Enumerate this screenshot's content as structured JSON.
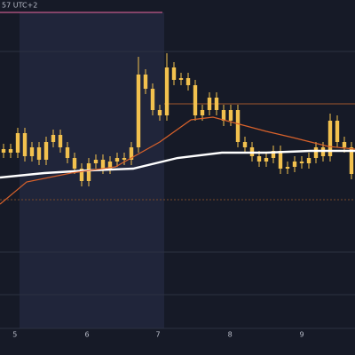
{
  "chart_data": {
    "type": "candlestick",
    "header": "57 UTC+2",
    "color": "#f2c14e",
    "open": [
      57,
      58,
      57,
      62.5,
      56,
      58.5,
      55,
      60,
      62,
      58.5,
      55.5,
      52.5,
      49,
      54,
      55,
      52.5,
      54.5,
      55.5,
      55,
      58.5,
      79,
      75,
      69,
      67.5,
      81,
      77.5,
      78,
      76,
      67.5,
      69,
      72.5,
      69,
      66,
      69,
      60,
      58.5,
      56,
      54.5,
      55.5,
      57.5,
      52.5,
      53,
      54.5,
      54,
      55.5,
      58.5,
      56,
      66,
      60,
      58.5
    ],
    "high": [
      59.5,
      59.5,
      64,
      64,
      60,
      60,
      61.5,
      63.5,
      63.5,
      60,
      57,
      54,
      55.5,
      56.5,
      56.5,
      56,
      57,
      57,
      60,
      84,
      80.5,
      76.5,
      70.5,
      85,
      82.5,
      79.5,
      79.5,
      77.5,
      70.5,
      74,
      74,
      70.5,
      70.5,
      70.5,
      61.5,
      60,
      57.5,
      57,
      59,
      59,
      54.5,
      56,
      56,
      57,
      60,
      60,
      68,
      67.5,
      61.5,
      60
    ],
    "low": [
      55.5,
      55.5,
      55.5,
      54.5,
      54.5,
      53.5,
      53.5,
      58.5,
      57,
      54,
      51,
      47.5,
      47.5,
      52.5,
      51,
      51,
      53,
      53.5,
      53.5,
      57,
      73.5,
      67.5,
      66,
      66,
      76,
      76,
      74.5,
      66,
      66,
      67.5,
      67.5,
      64.5,
      64.5,
      58.5,
      57,
      54.5,
      53,
      53,
      54,
      51,
      51,
      51.5,
      52.5,
      52.5,
      54,
      54.5,
      54.5,
      58.5,
      57,
      49.5
    ],
    "close": [
      58,
      57,
      62.5,
      56,
      58.5,
      55,
      60,
      62,
      58.5,
      55.5,
      52.5,
      49,
      54,
      55,
      52.5,
      54.5,
      55.5,
      55,
      58.5,
      79,
      75,
      69,
      67.5,
      81,
      77.5,
      78,
      76,
      67.5,
      69,
      72.5,
      69,
      66,
      69,
      60,
      58.5,
      56,
      54.5,
      55.5,
      57.5,
      52.5,
      53,
      54.5,
      54,
      55.5,
      58.5,
      56,
      66,
      60,
      58.5,
      51
    ],
    "lines": [
      {
        "color": "#ffffff",
        "x": [
          -0.5,
          5.75,
          12,
          18.25,
          24.5,
          30.75,
          37,
          43.25,
          49.5
        ],
        "values": [
          50,
          51.25,
          52,
          52.5,
          55.5,
          57,
          57,
          57.5,
          57.5
        ]
      },
      {
        "color": "#d9622b",
        "x": [
          -0.5,
          3.25,
          9.5,
          15.75,
          22,
          26.4,
          29.5,
          33.25,
          37,
          40.75,
          45.75,
          49.5
        ],
        "values": [
          42.5,
          48.75,
          51.25,
          53,
          60,
          66.25,
          67,
          65,
          63,
          61.25,
          58.75,
          58
        ]
      }
    ],
    "xlim": [
      -0.5,
      49.5
    ],
    "ylim": [
      0,
      100
    ],
    "xticks": [
      {
        "value": 1.6,
        "label": "5"
      },
      {
        "value": 11.75,
        "label": "6"
      },
      {
        "value": 21.75,
        "label": "7"
      },
      {
        "value": 31.9,
        "label": "8"
      },
      {
        "value": 42,
        "label": "9"
      }
    ]
  }
}
